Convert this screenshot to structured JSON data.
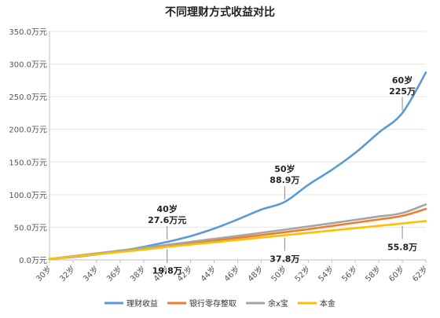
{
  "chart_data": {
    "type": "line",
    "title": "不同理财方式收益对比",
    "xlabel": "",
    "ylabel": "",
    "x_ticks": [
      "30岁",
      "32岁",
      "34岁",
      "36岁",
      "38岁",
      "40岁",
      "42岁",
      "44岁",
      "46岁",
      "48岁",
      "50岁",
      "52岁",
      "54岁",
      "56岁",
      "58岁",
      "60岁",
      "62岁"
    ],
    "y_ticks": [
      "0.0万元",
      "50.0万元",
      "100.0万元",
      "150.0万元",
      "200.0万元",
      "250.0万元",
      "300.0万元",
      "350.0万元"
    ],
    "xlim": [
      30,
      62
    ],
    "ylim": [
      0,
      350
    ],
    "grid": true,
    "legend_position": "bottom",
    "series": [
      {
        "name": "理财收益",
        "color": "#5b9bd5",
        "x": [
          30,
          32,
          34,
          36,
          38,
          40,
          42,
          44,
          46,
          48,
          50,
          52,
          54,
          56,
          58,
          60,
          62
        ],
        "y": [
          1.5,
          4.5,
          8.5,
          13.5,
          20,
          27.6,
          36.5,
          48,
          62,
          77,
          88.9,
          115,
          138,
          164,
          195,
          225,
          287
        ]
      },
      {
        "name": "银行零存整取",
        "color": "#ed7d31",
        "x": [
          30,
          32,
          34,
          36,
          38,
          40,
          42,
          44,
          46,
          48,
          50,
          52,
          54,
          56,
          58,
          60,
          62
        ],
        "y": [
          1.5,
          5.5,
          9.5,
          13.5,
          17.5,
          21.5,
          25.5,
          29.5,
          33.8,
          38,
          42.5,
          47,
          52,
          57,
          62,
          67.5,
          78
        ]
      },
      {
        "name": "余x宝",
        "color": "#a5a5a5",
        "x": [
          30,
          32,
          34,
          36,
          38,
          40,
          42,
          44,
          46,
          48,
          50,
          52,
          54,
          56,
          58,
          60,
          62
        ],
        "y": [
          1.5,
          5.8,
          10,
          14.3,
          18.7,
          23.1,
          27.6,
          32.2,
          36.8,
          41.5,
          46.3,
          51.2,
          56.2,
          61.3,
          66.5,
          71.8,
          85
        ]
      },
      {
        "name": "本金",
        "color": "#ffc000",
        "x": [
          30,
          32,
          34,
          36,
          38,
          40,
          42,
          44,
          46,
          48,
          50,
          52,
          54,
          56,
          58,
          60,
          62
        ],
        "y": [
          1.5,
          5.1,
          8.6,
          12.2,
          15.8,
          19.8,
          23.6,
          27,
          30.6,
          34.2,
          37.8,
          41.4,
          45,
          48.6,
          52.2,
          55.8,
          59.4
        ]
      }
    ],
    "annotations": [
      {
        "series": "理财收益",
        "x": 40,
        "y": 27.6,
        "lines": [
          "40岁",
          "27.6万元"
        ],
        "placement": "above"
      },
      {
        "series": "理财收益",
        "x": 50,
        "y": 88.9,
        "lines": [
          "50岁",
          "88.9万"
        ],
        "placement": "above"
      },
      {
        "series": "理财收益",
        "x": 60,
        "y": 225,
        "lines": [
          "60岁",
          "225万"
        ],
        "placement": "above"
      },
      {
        "series": "本金",
        "x": 40,
        "y": 19.8,
        "lines": [
          "19.8万"
        ],
        "placement": "below"
      },
      {
        "series": "本金",
        "x": 50,
        "y": 37.8,
        "lines": [
          "37.8万"
        ],
        "placement": "below"
      },
      {
        "series": "本金",
        "x": 60,
        "y": 55.8,
        "lines": [
          "55.8万"
        ],
        "placement": "below"
      }
    ]
  }
}
